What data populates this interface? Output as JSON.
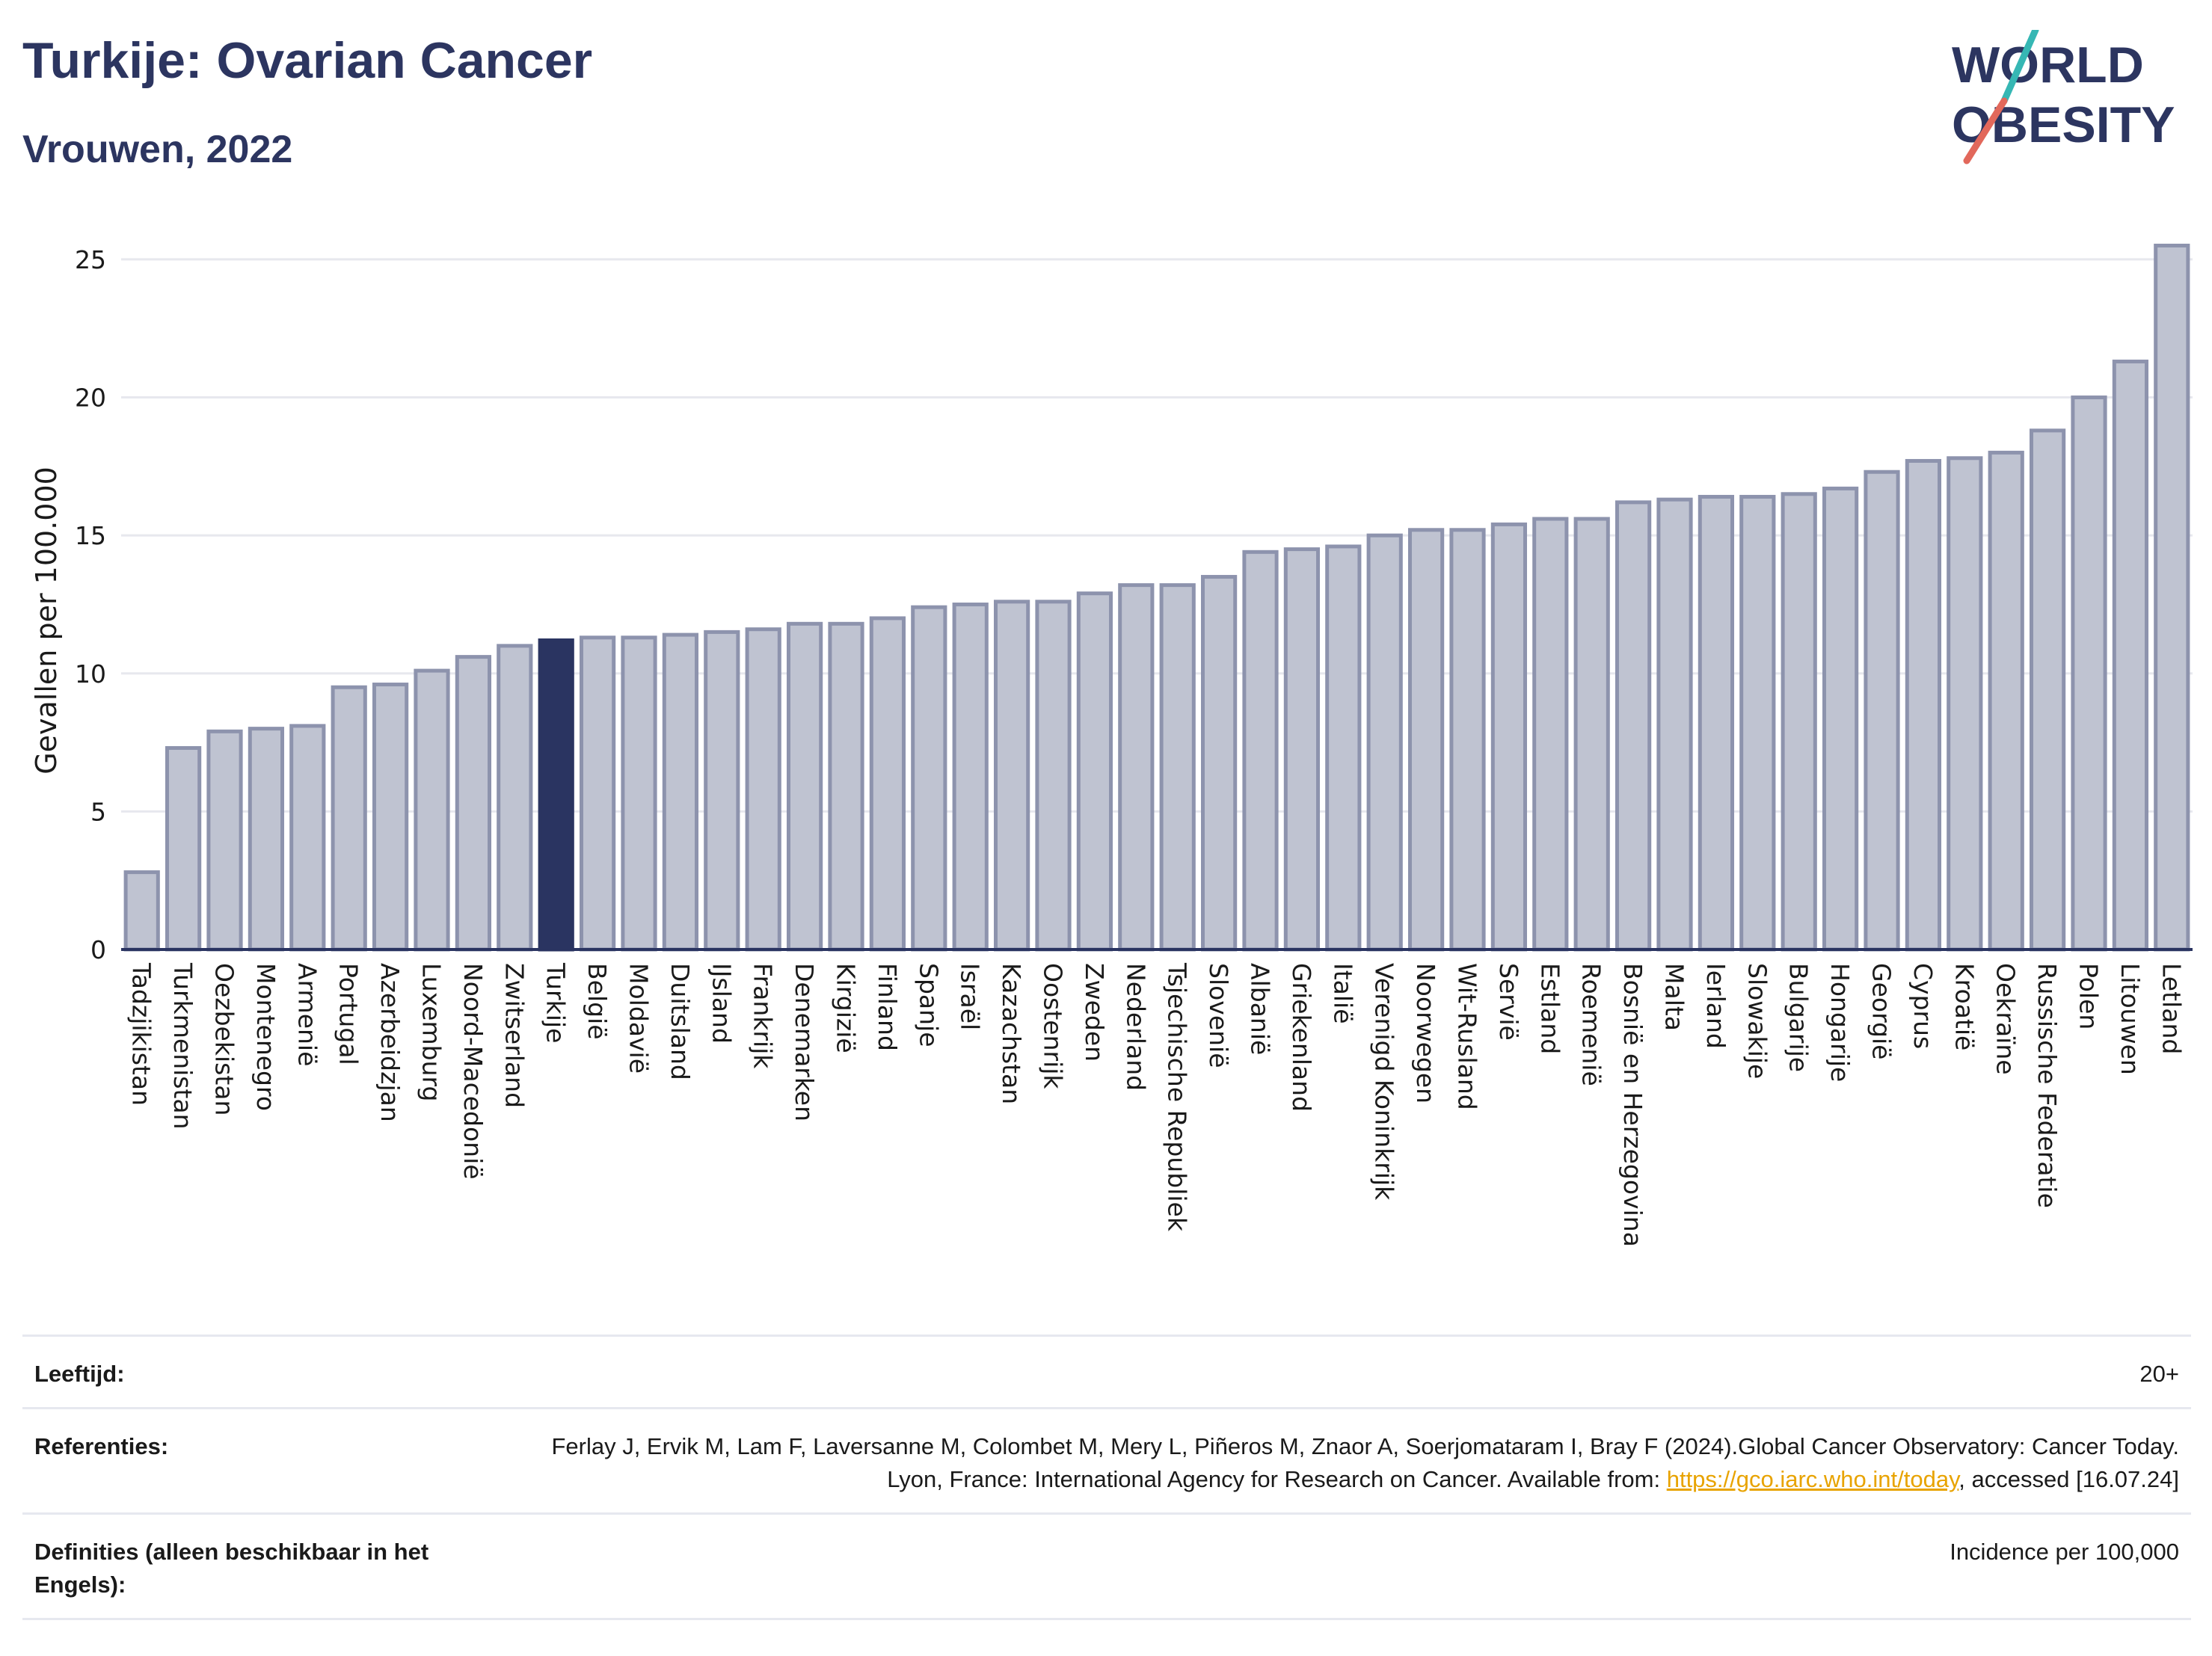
{
  "header": {
    "title": "Turkije: Ovarian Cancer",
    "subtitle": "Vrouwen, 2022"
  },
  "logo": {
    "line1": "WORLD",
    "line2": "OBESITY",
    "accent_colors": [
      "#36b7b4",
      "#e2685b"
    ]
  },
  "colors": {
    "bar": "#bfc3d1",
    "bar_border": "#8d93ad",
    "highlight": "#2a3461",
    "grid": "#e7e8ee",
    "axis": "#2a3461"
  },
  "chart_data": {
    "type": "bar",
    "ylabel": "Gevallen per 100.000",
    "xlabel": "",
    "ylim": [
      0,
      26
    ],
    "yticks": [
      0,
      5,
      10,
      15,
      20,
      25
    ],
    "grid": true,
    "highlight": "Turkije",
    "categories": [
      "Tadzjikistan",
      "Turkmenistan",
      "Oezbekistan",
      "Montenegro",
      "Armenië",
      "Portugal",
      "Azerbeidzjan",
      "Luxemburg",
      "Noord-Macedonië",
      "Zwitserland",
      "Turkije",
      "België",
      "Moldavië",
      "Duitsland",
      "IJsland",
      "Frankrijk",
      "Denemarken",
      "Kirgizië",
      "Finland",
      "Spanje",
      "Israël",
      "Kazachstan",
      "Oostenrijk",
      "Zweden",
      "Nederland",
      "Tsjechische Republiek",
      "Slovenië",
      "Albanië",
      "Griekenland",
      "Italië",
      "Verenigd Koninkrijk",
      "Noorwegen",
      "Wit-Rusland",
      "Servië",
      "Estland",
      "Roemenië",
      "Bosnië en Herzegovina",
      "Malta",
      "Ierland",
      "Slowakije",
      "Bulgarije",
      "Hongarije",
      "Georgië",
      "Cyprus",
      "Kroatië",
      "Oekraïne",
      "Russische Federatie",
      "Polen",
      "Litouwen",
      "Letland"
    ],
    "values": [
      2.8,
      7.3,
      7.9,
      8.0,
      8.1,
      9.5,
      9.6,
      10.1,
      10.6,
      11.0,
      11.2,
      11.3,
      11.3,
      11.4,
      11.5,
      11.6,
      11.8,
      11.8,
      12.0,
      12.4,
      12.5,
      12.6,
      12.6,
      12.9,
      13.2,
      13.2,
      13.5,
      14.4,
      14.5,
      14.6,
      15.0,
      15.2,
      15.2,
      15.4,
      15.6,
      15.6,
      16.2,
      16.3,
      16.4,
      16.4,
      16.5,
      16.7,
      17.3,
      17.7,
      17.8,
      18.0,
      18.8,
      20.0,
      21.3,
      25.5
    ]
  },
  "footer": {
    "rows": [
      {
        "label": "Leeftijd:",
        "value": "20+"
      },
      {
        "label": "Referenties:",
        "value_before_link": "Ferlay J, Ervik M, Lam F, Laversanne M, Colombet M, Mery L, Piñeros M, Znaor A, Soerjomataram I, Bray F (2024).Global Cancer Observatory: Cancer Today. Lyon, France: International Agency for Research on Cancer. Available from: ",
        "link": "https://gco.iarc.who.int/today",
        "value_after_link": ", accessed [16.07.24]"
      },
      {
        "label": "Definities (alleen beschikbaar in het Engels):",
        "value": "Incidence per 100,000"
      }
    ]
  }
}
